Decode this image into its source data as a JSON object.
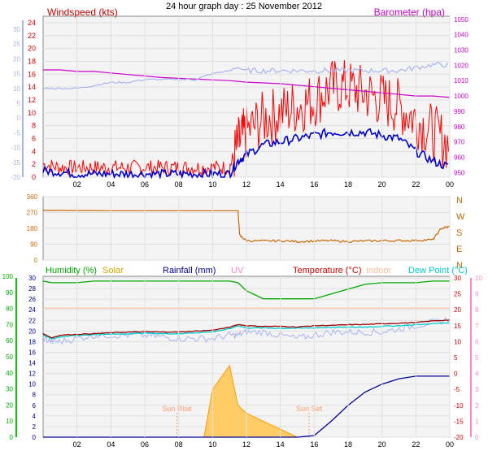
{
  "title": "24 hour graph day : 25 November 2012",
  "colors": {
    "wind": "#e00000",
    "gust": "#ff0000",
    "avg": "#0000cc",
    "baro": "#cc00cc",
    "temp_axis_left": "#a8b4f0",
    "dir": "#cc6600",
    "compass": "#cc6600",
    "humidity": "#00aa00",
    "solar": "#ccaa00",
    "rain": "#000099",
    "uv": "#ff88cc",
    "temp": "#990000",
    "indoor": "#ffbb99",
    "dew": "#00cccc",
    "apptemp": "#a8b4f0",
    "sunlabel": "#ff9966"
  },
  "panel1": {
    "left_title": "Windspeed (kts)",
    "right_title": "Barometer (hpa)",
    "left_ticks": [
      "0",
      "2",
      "4",
      "6",
      "8",
      "10",
      "12",
      "14",
      "16",
      "18",
      "20",
      "22",
      "24"
    ],
    "temp_ticks": [
      "-20",
      "-15",
      "-10",
      "-5",
      "0",
      "5",
      "10",
      "15",
      "20",
      "25",
      "30"
    ],
    "right_ticks": [
      "950",
      "960",
      "970",
      "980",
      "990",
      "1000",
      "1010",
      "1020",
      "1030",
      "1040",
      "1050"
    ]
  },
  "panel2": {
    "left_ticks": [
      "0",
      "90",
      "180",
      "270",
      "360"
    ],
    "compass": [
      "N",
      "W",
      "S",
      "E",
      "N"
    ]
  },
  "panel3": {
    "legend": {
      "humidity": "Humidity (%)",
      "solar": "Solar",
      "rain": "Rainfall (mm)",
      "uv": "UV",
      "temp": "Temperature (°C)",
      "indoor": "Indoor",
      "dew": "Dew Point (°C)"
    },
    "hum_ticks": [
      "0",
      "10",
      "20",
      "30",
      "40",
      "50",
      "60",
      "70",
      "80",
      "90",
      "100"
    ],
    "rain_ticks": [
      "0",
      "2",
      "4",
      "6",
      "8",
      "10",
      "12",
      "14",
      "16",
      "18",
      "20",
      "22",
      "24",
      "26",
      "28",
      "30"
    ],
    "temp_ticks": [
      "-20",
      "-15",
      "-10",
      "-5",
      "0",
      "5",
      "10",
      "15",
      "20",
      "25",
      "30"
    ],
    "uv_ticks": [
      "0",
      "1",
      "2",
      "3",
      "4",
      "5",
      "6",
      "7",
      "8",
      "9",
      "10"
    ],
    "sunrise": "Sun Rise",
    "sunset": "Sun Set"
  },
  "x_ticks": [
    "02",
    "04",
    "06",
    "08",
    "10",
    "12",
    "14",
    "16",
    "18",
    "20",
    "22",
    "00"
  ],
  "chart_data": [
    {
      "type": "line",
      "ylabel": "Windspeed (kts)",
      "y2label": "Barometer (hpa)",
      "ylim": [
        0,
        25
      ],
      "y2lim": [
        947,
        1052
      ],
      "x": [
        0,
        1,
        2,
        3,
        4,
        5,
        6,
        7,
        8,
        9,
        10,
        11,
        11.5,
        12,
        13,
        14,
        15,
        16,
        17,
        18,
        19,
        20,
        21,
        22,
        23,
        24
      ],
      "series": [
        {
          "name": "Windspeed (kts)",
          "values": [
            2,
            1.5,
            1.5,
            1.5,
            1.5,
            1.5,
            1.5,
            1.5,
            1.5,
            1.5,
            1.5,
            1.5,
            5,
            7,
            9,
            10,
            11,
            12,
            14,
            14,
            13,
            12,
            11,
            9,
            7,
            5
          ]
        },
        {
          "name": "Barometer (hpa)",
          "values": [
            1017,
            1017,
            1016,
            1016,
            1015,
            1014,
            1013,
            1012,
            1011.5,
            1011,
            1010.5,
            1010,
            1009.5,
            1009,
            1008.5,
            1008,
            1007,
            1006,
            1005,
            1004,
            1003,
            1002,
            1001,
            1000,
            1000,
            999
          ]
        },
        {
          "values": [
            1,
            0.8,
            0.5,
            0.5,
            0.5,
            0.5,
            0.5,
            0.5,
            0.5,
            0.5,
            0.5,
            0.5,
            2.5,
            3.5,
            5,
            5.5,
            6,
            6.5,
            7,
            7,
            7,
            6.5,
            6,
            4,
            2.5,
            1.5
          ]
        },
        {
          "values": [
            10,
            10,
            10,
            11,
            12,
            12,
            13,
            13,
            13,
            13,
            15,
            16,
            17,
            16,
            16,
            16,
            16,
            16,
            16,
            16,
            16,
            16,
            16,
            17,
            18,
            18
          ]
        }
      ]
    },
    {
      "type": "line",
      "ylim": [
        0,
        360
      ],
      "x": [
        0,
        1,
        2,
        3,
        4,
        5,
        6,
        7,
        8,
        9,
        10,
        11,
        11.5,
        11.6,
        12,
        13,
        14,
        15,
        16,
        17,
        18,
        19,
        20,
        21,
        22,
        23,
        23.5,
        24
      ],
      "series": [
        {
          "values": [
            282,
            282,
            281,
            281,
            280,
            280,
            280,
            280,
            280,
            280,
            280,
            280,
            280,
            140,
            110,
            108,
            110,
            105,
            108,
            110,
            105,
            108,
            110,
            110,
            112,
            115,
            180,
            190
          ]
        }
      ]
    },
    {
      "type": "line",
      "ylim": [
        0,
        100
      ],
      "x": [
        0,
        0.5,
        1,
        2,
        3,
        4,
        5,
        6,
        7,
        8,
        9,
        10,
        11,
        11.5,
        12,
        13,
        14,
        15,
        16,
        17,
        18,
        19,
        20,
        21,
        22,
        23,
        24
      ],
      "series": [
        {
          "name": "Humidity (%)",
          "values": [
            97,
            96,
            96,
            96,
            97,
            97,
            97,
            97,
            97,
            97,
            97,
            97,
            97,
            96,
            91,
            86,
            86,
            86,
            86,
            89,
            92,
            95,
            96,
            96,
            96,
            97,
            97
          ]
        },
        {
          "name": "Temperature (°C)",
          "values": [
            12.5,
            11.2,
            12,
            12.3,
            12.5,
            12.8,
            13,
            13.1,
            13,
            13,
            13.3,
            13.6,
            14.5,
            15.4,
            15,
            14.8,
            14.8,
            14.6,
            15,
            15.1,
            15.3,
            15.4,
            15.6,
            15.8,
            16,
            16.5,
            16.8
          ]
        },
        {
          "name": "Dew Point (°C)",
          "values": [
            12,
            11,
            11.5,
            12,
            12.2,
            12.3,
            12.5,
            12.7,
            12.5,
            12.5,
            12.8,
            13.1,
            14,
            15,
            14.3,
            14.3,
            14.2,
            14.2,
            14.3,
            14.5,
            14.5,
            14.6,
            14.8,
            15,
            15.3,
            15.6,
            16
          ]
        },
        {
          "name": "Indoor",
          "values": [
            20.5,
            20.5,
            20.5,
            20.5,
            20.5,
            20.5,
            20.5,
            20.5,
            20.5,
            20.5,
            20.5,
            20.5,
            20.5,
            20.5,
            20.5,
            20.5,
            20.5,
            20.5,
            20.5,
            20.5,
            20.5,
            20.5,
            20.5,
            20.5,
            20.5,
            20.5,
            20.5
          ]
        },
        {
          "name": "Rainfall (mm)",
          "values": [
            0,
            0,
            0,
            0,
            0,
            0,
            0,
            0,
            0,
            0,
            0,
            0,
            0,
            0,
            0,
            0,
            0,
            0,
            0.3,
            3,
            6,
            8.5,
            10,
            11,
            11.5,
            11.5,
            11.5
          ]
        },
        {
          "name": "Solar",
          "values": [
            0,
            0,
            0,
            0,
            0,
            0,
            0,
            0,
            0,
            0,
            20,
            60,
            90,
            40,
            30,
            20,
            10,
            0,
            0,
            0,
            0,
            0,
            0,
            0,
            0,
            0,
            0
          ]
        },
        {
          "values": [
            11,
            10,
            10,
            11,
            12,
            12,
            12,
            12,
            11.5,
            11,
            11,
            11,
            12,
            12,
            13,
            13,
            12,
            11,
            12,
            13,
            13,
            13,
            13,
            14,
            15,
            16,
            17
          ]
        }
      ]
    }
  ]
}
